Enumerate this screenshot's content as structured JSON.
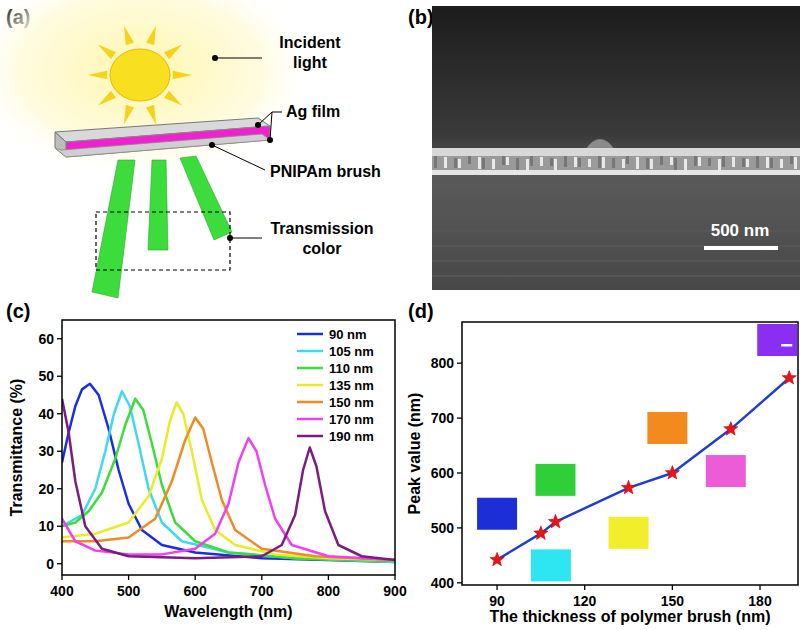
{
  "panel_labels": [
    "(a)",
    "(b)",
    "(c)",
    "(d)"
  ],
  "diagram": {
    "labels": [
      "Incident light",
      "Ag film",
      "PNIPAm brush",
      "Transmission color"
    ]
  },
  "sem": {
    "scale_bar": "500 nm"
  },
  "chart_data": [
    {
      "type": "line",
      "x_label": "Wavelength (nm)",
      "y_label": "Transmittance (%)",
      "xlim": [
        400,
        900
      ],
      "xticks": [
        400,
        500,
        600,
        700,
        800,
        900
      ],
      "ylim": [
        -3,
        65
      ],
      "yticks": [
        0,
        10,
        20,
        30,
        40,
        50,
        60
      ],
      "legend": "upper right",
      "series": [
        {
          "name": "90 nm",
          "color": "#1a2ee0",
          "x": [
            400,
            410,
            420,
            430,
            442,
            455,
            470,
            485,
            500,
            520,
            550,
            600,
            700,
            800,
            900
          ],
          "values": [
            27,
            35,
            42,
            46.5,
            48,
            45,
            36,
            25,
            16,
            9,
            5,
            3,
            1.5,
            1,
            0.5
          ]
        },
        {
          "name": "105 nm",
          "color": "#3fd8f0",
          "x": [
            400,
            430,
            450,
            465,
            478,
            490,
            502,
            515,
            530,
            550,
            580,
            650,
            750,
            900
          ],
          "values": [
            10,
            13,
            20,
            30,
            40,
            46,
            42,
            32,
            20,
            11,
            6,
            3,
            1.5,
            0.5
          ]
        },
        {
          "name": "110 nm",
          "color": "#3cdc3c",
          "x": [
            400,
            420,
            440,
            460,
            480,
            495,
            510,
            522,
            535,
            550,
            570,
            600,
            650,
            750,
            900
          ],
          "values": [
            10,
            11,
            14,
            19,
            28,
            37,
            44,
            41,
            32,
            21,
            11,
            6,
            3,
            1.5,
            0.7
          ]
        },
        {
          "name": "135 nm",
          "color": "#eaea2a",
          "x": [
            400,
            450,
            500,
            530,
            550,
            562,
            572,
            582,
            595,
            610,
            630,
            660,
            720,
            800,
            900
          ],
          "values": [
            7,
            8,
            11,
            18,
            28,
            38,
            43,
            40,
            30,
            17,
            9,
            5,
            2.5,
            1.5,
            1
          ]
        },
        {
          "name": "150 nm",
          "color": "#f08a24",
          "x": [
            400,
            450,
            500,
            540,
            565,
            585,
            600,
            612,
            625,
            640,
            660,
            700,
            780,
            900
          ],
          "values": [
            6,
            6,
            7,
            12,
            22,
            33,
            39,
            36,
            27,
            17,
            9,
            4,
            2,
            1
          ]
        },
        {
          "name": "170 nm",
          "color": "#f040f0",
          "x": [
            400,
            420,
            450,
            500,
            550,
            600,
            630,
            650,
            665,
            680,
            692,
            705,
            720,
            745,
            800,
            900
          ],
          "values": [
            12,
            6,
            3.5,
            2.5,
            2.5,
            4,
            8,
            16,
            27,
            33.5,
            30,
            21,
            12,
            5,
            2,
            1
          ]
        },
        {
          "name": "190 nm",
          "color": "#7b1c80",
          "x": [
            400,
            410,
            420,
            435,
            460,
            500,
            600,
            700,
            730,
            750,
            762,
            772,
            782,
            795,
            815,
            850,
            900
          ],
          "values": [
            44,
            35,
            22,
            10,
            4,
            2,
            1.5,
            2,
            5,
            13,
            25,
            31,
            26,
            14,
            5,
            2,
            1
          ]
        }
      ]
    },
    {
      "type": "line",
      "x_label": "The thickness of polymer brush (nm)",
      "y_label": "Peak value (nm)",
      "xlim": [
        78,
        193
      ],
      "xticks": [
        90,
        120,
        150,
        180
      ],
      "ylim": [
        396,
        875
      ],
      "yticks": [
        400,
        500,
        600,
        700,
        800
      ],
      "series": [
        {
          "color": "#1f3fd0",
          "marker": "star",
          "x": [
            90,
            105,
            110,
            135,
            150,
            170,
            190
          ],
          "values": [
            442,
            490,
            511,
            573,
            600,
            680,
            773
          ]
        }
      ]
    }
  ]
}
